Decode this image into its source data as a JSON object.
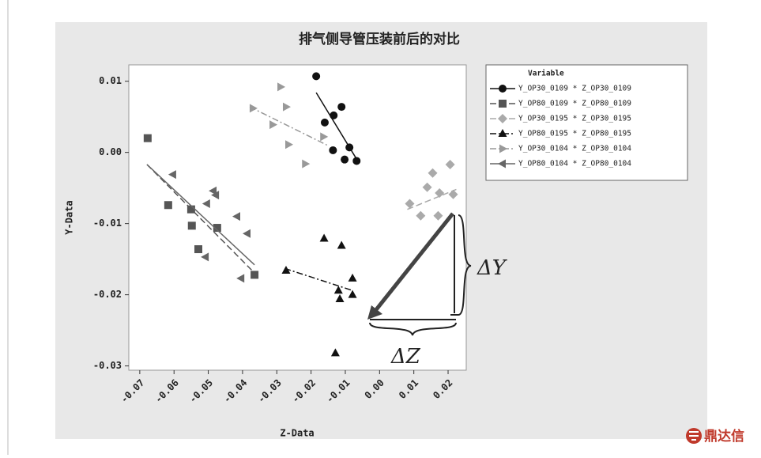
{
  "logo": "鼎达信",
  "chart_data": {
    "type": "scatter",
    "title": "排气侧导管压装前后的对比",
    "x_label": "Z-Data",
    "y_label": "Y-Data",
    "legend_title": "Variable",
    "annotations": [
      "ΔY",
      "ΔZ"
    ],
    "xlim": [
      -0.0732,
      0.0253
    ],
    "ylim": [
      -0.0306,
      0.0123
    ],
    "xticks": [
      -0.07,
      -0.06,
      -0.05,
      -0.04,
      -0.03,
      -0.02,
      -0.01,
      {
        "value": 0,
        "label": "0.00"
      },
      0.01,
      0.02
    ],
    "yticks": [
      0.01,
      {
        "value": 0,
        "label": "0.00"
      },
      -0.01,
      -0.02,
      -0.03
    ],
    "series": [
      {
        "name": "Y_OP30_0109 * Z_OP30_0109",
        "color": "#111111",
        "marker": "circle",
        "dash": "solid",
        "x": [
          -0.0185,
          -0.016,
          -0.0134,
          -0.0111,
          -0.0136,
          -0.0088,
          -0.0102,
          -0.0067
        ],
        "values": [
          0.0107,
          0.0042,
          0.0052,
          0.0064,
          0.0003,
          0.0007,
          -0.001,
          -0.0012
        ],
        "fit_x": [
          -0.0185,
          -0.0065
        ],
        "fit_y": [
          0.0084,
          -0.0011
        ]
      },
      {
        "name": "Y_OP80_0109 * Z_OP80_0109",
        "color": "#555555",
        "marker": "square",
        "dash": "dash",
        "x": [
          -0.0677,
          -0.0617,
          -0.055,
          -0.0548,
          -0.0529,
          -0.0474,
          -0.0365
        ],
        "values": [
          0.002,
          -0.0074,
          -0.008,
          -0.0103,
          -0.0136,
          -0.0106,
          -0.0172
        ],
        "fit_x": [
          -0.0679,
          -0.037
        ],
        "fit_y": [
          -0.0017,
          -0.0167
        ]
      },
      {
        "name": "Y_OP30_0195 * Z_OP30_0195",
        "color": "#aaaaaa",
        "marker": "diamond",
        "dash": "dash",
        "x": [
          0.0088,
          0.012,
          0.0139,
          0.0155,
          0.0175,
          0.0171,
          0.0206,
          0.0215
        ],
        "values": [
          -0.0072,
          -0.0089,
          -0.0049,
          -0.0029,
          -0.0057,
          -0.0089,
          -0.0017,
          -0.0059
        ],
        "fit_x": [
          0.0081,
          0.0224
        ],
        "fit_y": [
          -0.008,
          -0.0052
        ]
      },
      {
        "name": "Y_OP80_0195 * Z_OP80_0195",
        "color": "#111111",
        "marker": "triangle-up",
        "dash": "dashdot",
        "x": [
          -0.0273,
          -0.0162,
          -0.0111,
          -0.0079,
          -0.012,
          -0.0116,
          -0.0079,
          -0.0129
        ],
        "values": [
          -0.0166,
          -0.0121,
          -0.0131,
          -0.0177,
          -0.0194,
          -0.0206,
          -0.02,
          -0.0282
        ],
        "fit_x": [
          -0.0277,
          -0.0079
        ],
        "fit_y": [
          -0.0163,
          -0.0194
        ]
      },
      {
        "name": "Y_OP30_0104 * Z_OP30_0104",
        "color": "#999999",
        "marker": "triangle-right",
        "dash": "dashdot",
        "x": [
          -0.037,
          -0.0289,
          -0.0273,
          -0.0312,
          -0.0266,
          -0.0217,
          -0.0164
        ],
        "values": [
          0.0062,
          0.0092,
          0.0064,
          0.0039,
          0.0011,
          -0.0016,
          0.0022
        ],
        "fit_x": [
          -0.0379,
          -0.0148
        ],
        "fit_y": [
          0.0064,
          0.0009
        ]
      },
      {
        "name": "Y_OP80_0104 * Z_OP80_0104",
        "color": "#666666",
        "marker": "triangle-left",
        "dash": "solid",
        "x": [
          -0.0603,
          -0.0504,
          -0.0485,
          -0.0478,
          -0.0416,
          -0.0386,
          -0.0404,
          -0.0508
        ],
        "values": [
          -0.0031,
          -0.0072,
          -0.0054,
          -0.006,
          -0.009,
          -0.0114,
          -0.0177,
          -0.0147
        ],
        "fit_x": [
          -0.0679,
          -0.0365
        ],
        "fit_y": [
          -0.0017,
          -0.0158
        ]
      }
    ]
  }
}
